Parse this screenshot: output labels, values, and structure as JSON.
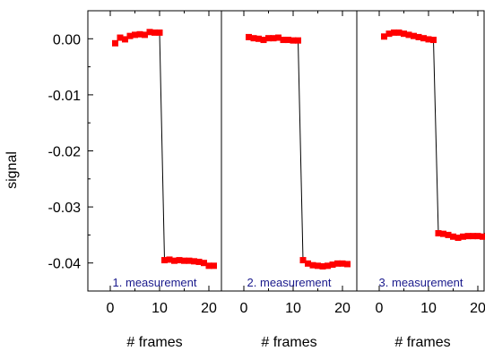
{
  "chart_data": {
    "type": "scatter",
    "ylabel": "signal",
    "ylim": [
      -0.045,
      0.005
    ],
    "y_ticks": [
      0.0,
      -0.01,
      -0.02,
      -0.03,
      -0.04
    ],
    "y_tick_labels": [
      "0.00",
      "-0.01",
      "-0.02",
      "-0.03",
      "-0.04"
    ],
    "x_ticks": [
      0,
      10,
      20
    ],
    "x_tick_labels": [
      "0",
      "10",
      "20"
    ],
    "xlim": [
      -2,
      23
    ],
    "marker_color": "#ff0000",
    "line_color": "#000000",
    "caption_color": "#1a1a8c",
    "panels": [
      {
        "xlabel": "# frames",
        "caption": "1. measurement",
        "x": [
          1,
          2,
          3,
          4,
          5,
          6,
          7,
          8,
          9,
          10,
          11,
          12,
          13,
          14,
          15,
          16,
          17,
          18,
          19,
          20,
          21
        ],
        "y": [
          -0.0008,
          0.0002,
          -0.0001,
          0.0005,
          0.0007,
          0.0008,
          0.0007,
          0.0012,
          0.0011,
          0.0011,
          -0.0395,
          -0.0394,
          -0.0396,
          -0.0395,
          -0.0396,
          -0.0396,
          -0.0397,
          -0.0398,
          -0.04,
          -0.0405,
          -0.0405
        ]
      },
      {
        "xlabel": "# frames",
        "caption": "2. measurement",
        "x": [
          1,
          2,
          3,
          4,
          5,
          6,
          7,
          8,
          9,
          10,
          11,
          12,
          13,
          14,
          15,
          16,
          17,
          18,
          19,
          20,
          21
        ],
        "y": [
          0.0003,
          0.0001,
          0.0,
          -0.0002,
          0.0001,
          0.0001,
          0.0002,
          -0.0002,
          -0.0002,
          -0.0003,
          -0.0003,
          -0.0395,
          -0.0401,
          -0.0404,
          -0.0405,
          -0.0406,
          -0.0405,
          -0.0403,
          -0.0401,
          -0.0401,
          -0.0402
        ]
      },
      {
        "xlabel": "# frames",
        "caption": "3. measurement",
        "x": [
          1,
          2,
          3,
          4,
          5,
          6,
          7,
          8,
          9,
          10,
          11,
          12,
          13,
          14,
          15,
          16,
          17,
          18,
          19,
          20,
          21,
          22
        ],
        "y": [
          0.0004,
          0.0009,
          0.0011,
          0.0011,
          0.0009,
          0.0007,
          0.0005,
          0.0003,
          0.0001,
          -0.0001,
          -0.0002,
          -0.0347,
          -0.0348,
          -0.035,
          -0.0353,
          -0.0355,
          -0.0353,
          -0.0352,
          -0.0352,
          -0.0352,
          -0.0353,
          -0.0352
        ]
      }
    ]
  }
}
